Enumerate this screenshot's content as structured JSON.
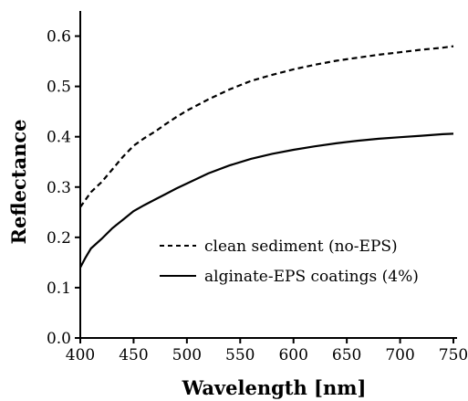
{
  "chart_data": {
    "type": "line",
    "title": "",
    "xlabel": "Wavelength [nm]",
    "ylabel": "Reflectance",
    "xlim": [
      400,
      750
    ],
    "ylim": [
      0.0,
      0.65
    ],
    "xticks": [
      400,
      450,
      500,
      550,
      600,
      650,
      700,
      750
    ],
    "yticks": [
      "0.0",
      "0.1",
      "0.2",
      "0.3",
      "0.4",
      "0.5",
      "0.6"
    ],
    "grid": false,
    "legend_position": "center-right",
    "series": [
      {
        "name": "clean sediment (no-EPS)",
        "style": "dashed",
        "color": "#000000",
        "x": [
          400,
          410,
          420,
          430,
          440,
          450,
          460,
          470,
          480,
          490,
          500,
          520,
          540,
          560,
          580,
          600,
          620,
          640,
          660,
          680,
          700,
          720,
          740,
          750
        ],
        "y": [
          0.26,
          0.29,
          0.31,
          0.335,
          0.36,
          0.382,
          0.397,
          0.41,
          0.425,
          0.439,
          0.452,
          0.474,
          0.494,
          0.511,
          0.523,
          0.534,
          0.543,
          0.551,
          0.557,
          0.563,
          0.568,
          0.573,
          0.577,
          0.58
        ]
      },
      {
        "name": "alginate-EPS coatings (4%)",
        "style": "solid",
        "color": "#000000",
        "x": [
          400,
          405,
          410,
          420,
          430,
          440,
          450,
          460,
          470,
          480,
          490,
          500,
          520,
          540,
          560,
          580,
          600,
          620,
          640,
          660,
          680,
          700,
          720,
          740,
          750
        ],
        "y": [
          0.14,
          0.16,
          0.178,
          0.197,
          0.218,
          0.235,
          0.252,
          0.264,
          0.275,
          0.286,
          0.297,
          0.307,
          0.327,
          0.343,
          0.356,
          0.366,
          0.374,
          0.381,
          0.387,
          0.392,
          0.396,
          0.399,
          0.402,
          0.405,
          0.406
        ]
      }
    ]
  }
}
